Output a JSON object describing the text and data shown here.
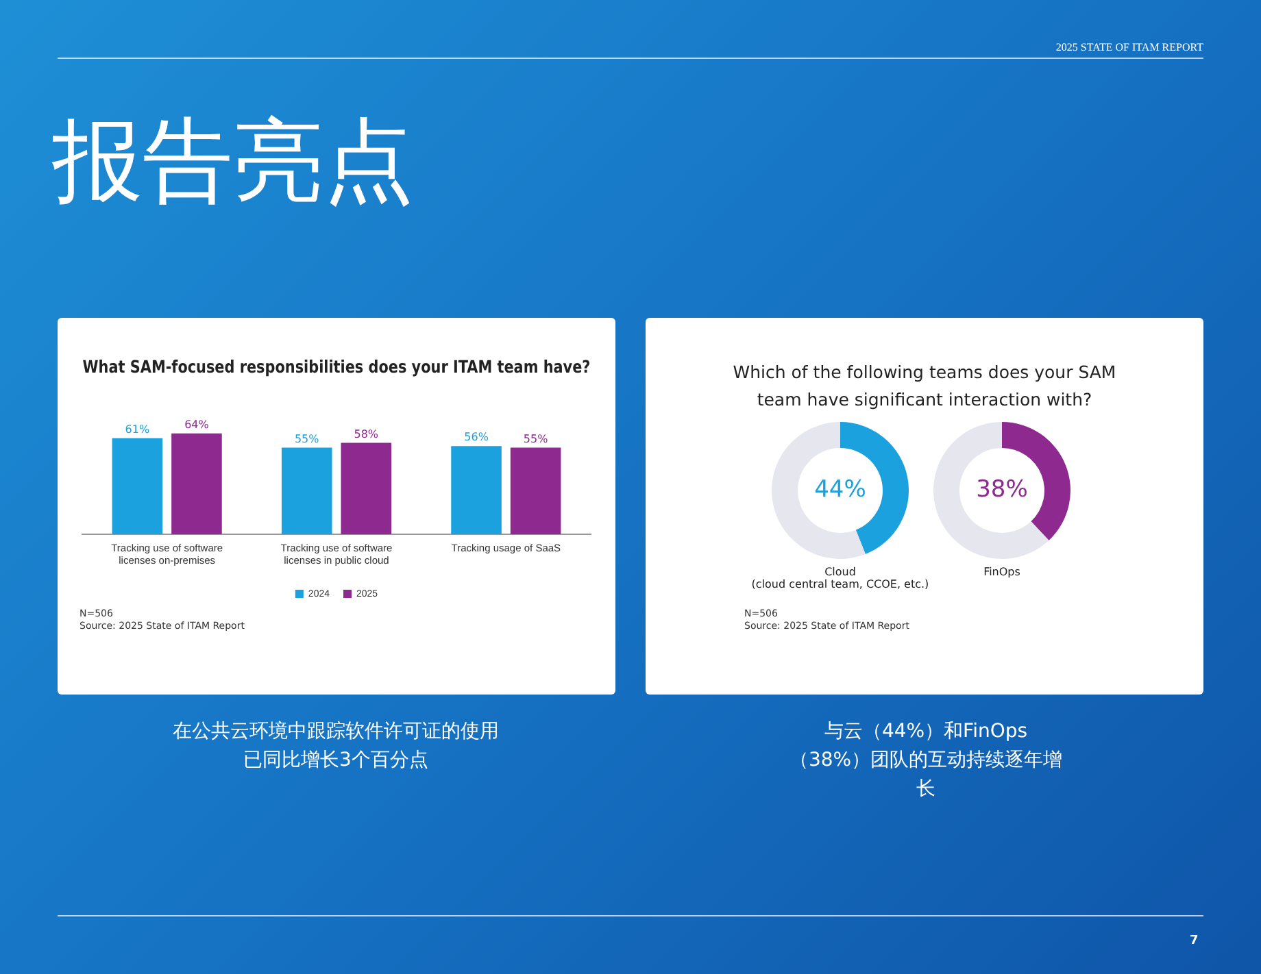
{
  "chart_data": [
    {
      "type": "bar",
      "title": "What SAM-focused responsibilities does your ITAM team have?",
      "categories": [
        "Tracking use of software\nlicenses on-premises",
        "Tracking use of software\nlicenses in public cloud",
        "Tracking usage of SaaS"
      ],
      "series": [
        {
          "name": "2024",
          "color": "#1ba1de",
          "values": [
            61,
            55,
            56
          ],
          "value_labels": [
            "61%",
            "55%",
            "56%"
          ]
        },
        {
          "name": "2025",
          "color": "#8e2a8f",
          "values": [
            64,
            58,
            55
          ],
          "value_labels": [
            "64%",
            "58%",
            "55%"
          ]
        }
      ],
      "legend": "bottom",
      "grid": false,
      "tick_labels": "x",
      "annotations": [
        "N=506",
        "Source: 2025 State of ITAM Report",
        "在公共云环境中跟踪软件许可证的使用已同比增长3个百分点",
        "报告亮点",
        "2025 STATE OF ITAM REPORT",
        "7"
      ]
    },
    {
      "type": "other",
      "title": "Which of the following teams does your SAM\nteam have significant interaction with?",
      "annotations": [
        "N=506",
        "Source: 2025 State of ITAM Report",
        "与云（44%）和FinOps（38%）团队的互动持续逐年增长"
      ]
    },
    {
      "type": "donut",
      "title": "Cloud\n(cloud central team, CCOE, etc.)",
      "categories": [
        null,
        null
      ],
      "values": [
        44,
        56
      ],
      "colors": [
        "#1ba1de",
        "#e6e6ee"
      ],
      "value_labels": [
        "44%",
        null
      ]
    },
    {
      "type": "donut",
      "title": "FinOps",
      "categories": [
        null,
        null
      ],
      "values": [
        38,
        62
      ],
      "colors": [
        "#8e2a8f",
        "#e6e6ee"
      ],
      "value_labels": [
        "38%",
        null
      ]
    }
  ]
}
